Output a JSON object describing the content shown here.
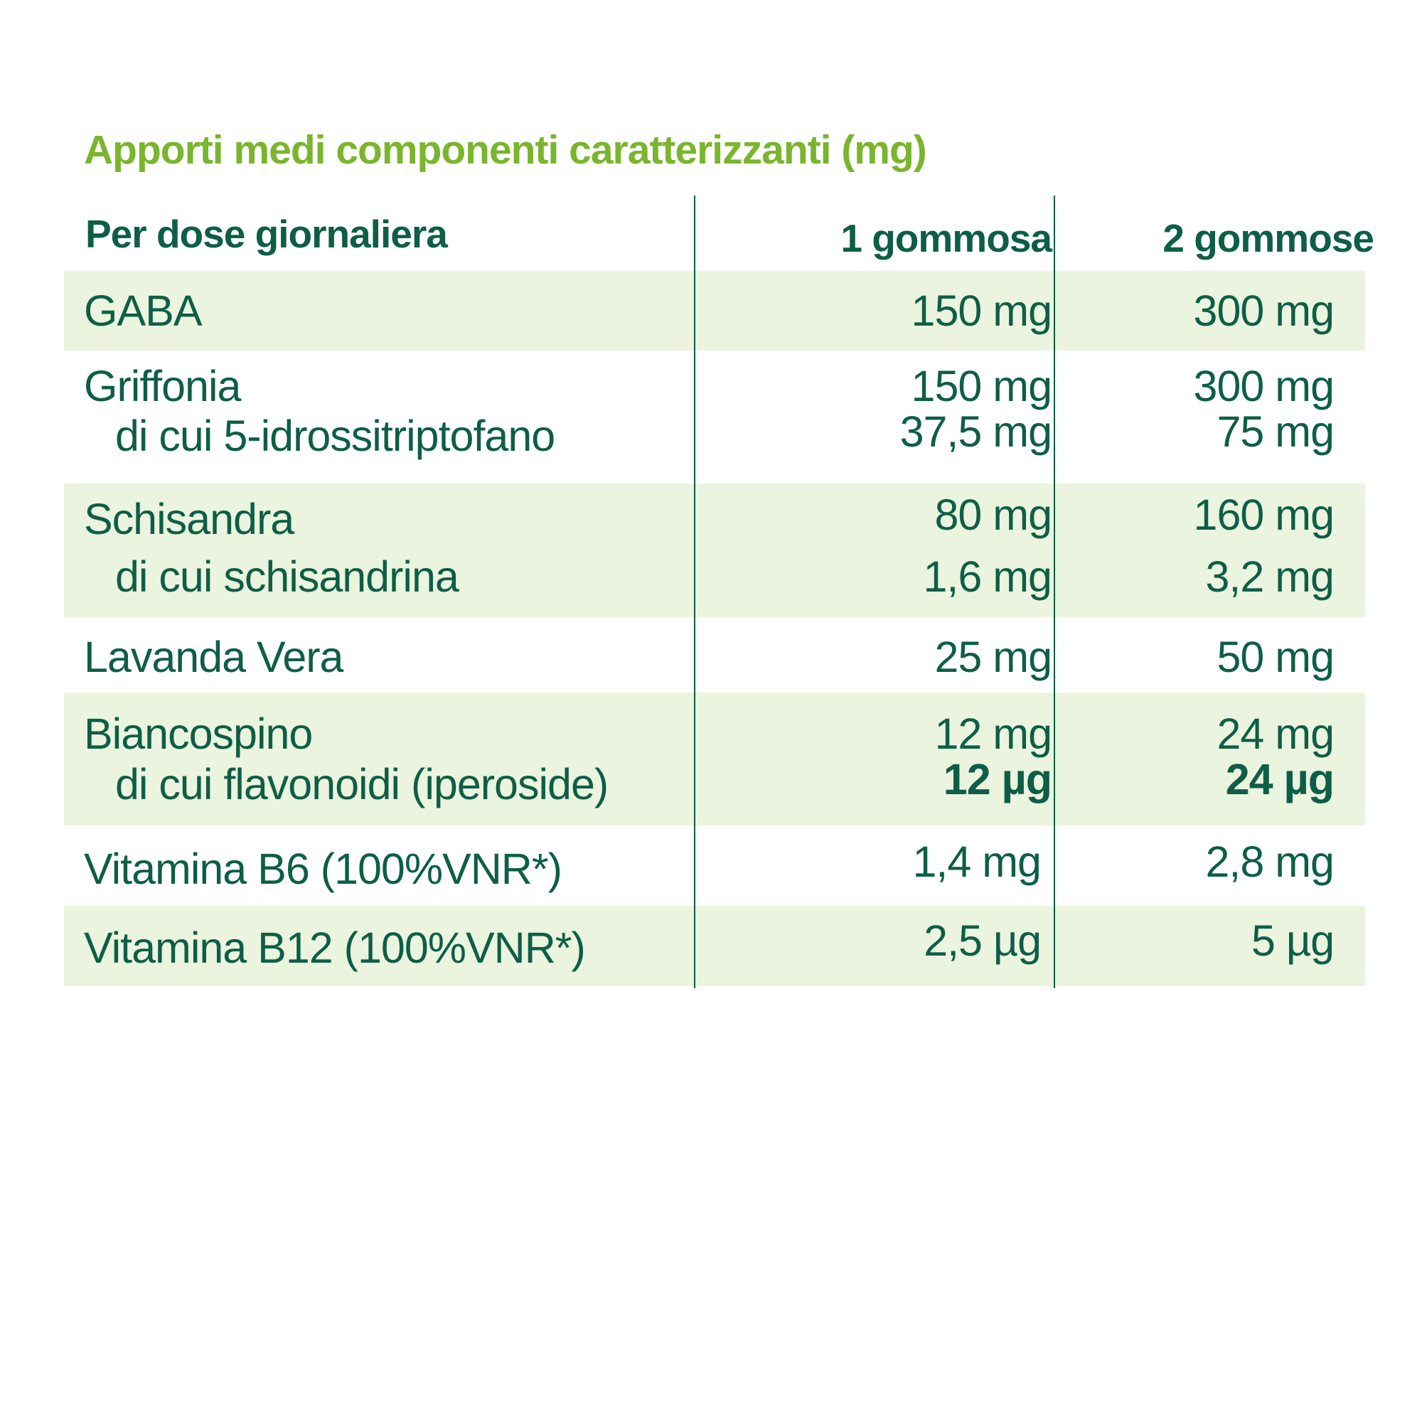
{
  "title": "Apporti medi componenti caratterizzanti (mg)",
  "header": {
    "col0": "Per dose giornaliera",
    "col1": "1 gommosa",
    "col2": "2 gommose"
  },
  "rows": [
    {
      "name": "GABA",
      "v1": "150 mg",
      "v2": "300 mg"
    },
    {
      "name": "Griffonia",
      "v1": "150 mg",
      "v2": "300 mg",
      "sub": "di cui 5-idrossitriptofano",
      "sub_v1": "37,5 mg",
      "sub_v2": "75 mg"
    },
    {
      "name": "Schisandra",
      "v1": "80 mg",
      "v2": "160 mg",
      "sub": "di cui schisandrina",
      "sub_v1": "1,6 mg",
      "sub_v2": "3,2 mg"
    },
    {
      "name": "Lavanda Vera",
      "v1": "25 mg",
      "v2": "50 mg"
    },
    {
      "name": "Biancospino",
      "v1": "12 mg",
      "v2": "24 mg",
      "sub": "di cui flavonoidi (iperoside)",
      "sub_v1": "12 µg",
      "sub_v2": "24 µg"
    },
    {
      "name": "Vitamina B6 (100%VNR*)",
      "v1": "1,4 mg",
      "v2": "2,8 mg"
    },
    {
      "name": "Vitamina B12 (100%VNR*)",
      "v1": "2,5 µg",
      "v2": "5 µg"
    }
  ],
  "colors": {
    "title_green": "#7ab52d",
    "text_dark_green": "#0e5e47",
    "row_shade": "#ebf4de"
  }
}
